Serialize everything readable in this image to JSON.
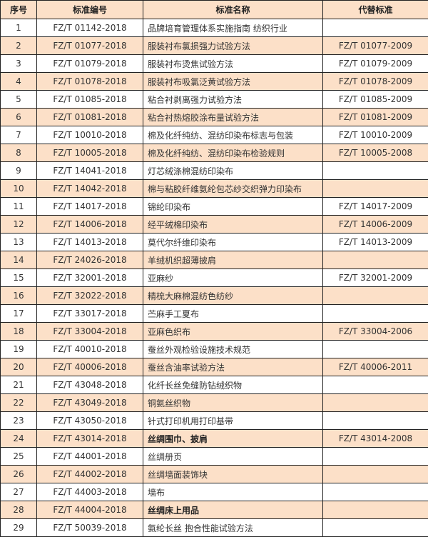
{
  "headers": [
    "序号",
    "标准编号",
    "标准名称",
    "代替标准"
  ],
  "rows": [
    {
      "no": "1",
      "code": "FZ/T 01142-2018",
      "name": "品牌培育管理体系实施指南  纺织行业",
      "replaces": ""
    },
    {
      "no": "2",
      "code": "FZ/T 01077-2018",
      "name": "服装衬布氯损强力试验方法",
      "replaces": "FZ/T 01077-2009"
    },
    {
      "no": "3",
      "code": "FZ/T 01079-2018",
      "name": "服装衬布烫焦试验方法",
      "replaces": "FZ/T 01079-2009"
    },
    {
      "no": "4",
      "code": "FZ/T 01078-2018",
      "name": "服装衬布吸氯泛黄试验方法",
      "replaces": "FZ/T 01078-2009"
    },
    {
      "no": "5",
      "code": "FZ/T 01085-2018",
      "name": "粘合衬剥离强力试验方法",
      "replaces": "FZ/T 01085-2009"
    },
    {
      "no": "6",
      "code": "FZ/T 01081-2018",
      "name": "粘合衬热熔胶涂布量试验方法",
      "replaces": "FZ/T 01081-2009"
    },
    {
      "no": "7",
      "code": "FZ/T 10010-2018",
      "name": "棉及化纤纯纺、混纺印染布标志与包装",
      "replaces": "FZ/T 10010-2009"
    },
    {
      "no": "8",
      "code": "FZ/T 10005-2018",
      "name": "棉及化纤纯纺、混纺印染布检验规则",
      "replaces": "FZ/T 10005-2008"
    },
    {
      "no": "9",
      "code": "FZ/T 14041-2018",
      "name": "灯芯绒涤棉混纺印染布",
      "replaces": ""
    },
    {
      "no": "10",
      "code": "FZ/T 14042-2018",
      "name": "棉与粘胶纤维氨纶包芯纱交织弹力印染布",
      "replaces": ""
    },
    {
      "no": "11",
      "code": "FZ/T 14017-2018",
      "name": "锦纶印染布",
      "replaces": "FZ/T 14017-2009"
    },
    {
      "no": "12",
      "code": "FZ/T 14006-2018",
      "name": "经平绒棉印染布",
      "replaces": "FZ/T 14006-2009"
    },
    {
      "no": "13",
      "code": "FZ/T 14013-2018",
      "name": "莫代尔纤维印染布",
      "replaces": "FZ/T 14013-2009"
    },
    {
      "no": "14",
      "code": "FZ/T 24026-2018",
      "name": "羊绒机织超薄披肩",
      "replaces": ""
    },
    {
      "no": "15",
      "code": "FZ/T 32001-2018",
      "name": "亚麻纱",
      "replaces": "FZ/T 32001-2009"
    },
    {
      "no": "16",
      "code": "FZ/T 32022-2018",
      "name": "精梳大麻棉混纺色纺纱",
      "replaces": ""
    },
    {
      "no": "17",
      "code": "FZ/T 33017-2018",
      "name": "苎麻手工夏布",
      "replaces": ""
    },
    {
      "no": "18",
      "code": "FZ/T 33004-2018",
      "name": "亚麻色织布",
      "replaces": "FZ/T 33004-2006"
    },
    {
      "no": "19",
      "code": "FZ/T 40010-2018",
      "name": "蚕丝外观检验设施技术规范",
      "replaces": ""
    },
    {
      "no": "20",
      "code": "FZ/T 40006-2018",
      "name": "蚕丝含油率试验方法",
      "replaces": "FZ/T 40006-2011"
    },
    {
      "no": "21",
      "code": "FZ/T 43048-2018",
      "name": "化纤长丝免缝防钻绒织物",
      "replaces": ""
    },
    {
      "no": "22",
      "code": "FZ/T 43049-2018",
      "name": "铜氨丝织物",
      "replaces": ""
    },
    {
      "no": "23",
      "code": "FZ/T 43050-2018",
      "name": "针式打印机用打印基带",
      "replaces": ""
    },
    {
      "no": "24",
      "code": "FZ/T 43014-2018",
      "name": "丝绸围巾、披肩",
      "replaces": "FZ/T 43014-2008"
    },
    {
      "no": "25",
      "code": "FZ/T 44001-2018",
      "name": "丝绸册页",
      "replaces": ""
    },
    {
      "no": "26",
      "code": "FZ/T 44002-2018",
      "name": "丝绸墙面装饰块",
      "replaces": ""
    },
    {
      "no": "27",
      "code": "FZ/T 44003-2018",
      "name": "墙布",
      "replaces": ""
    },
    {
      "no": "28",
      "code": "FZ/T 44004-2018",
      "name": "丝绸床上用品",
      "replaces": ""
    },
    {
      "no": "29",
      "code": "FZ/T 50039-2018",
      "name": "氨纶长丝 抱合性能试验方法",
      "replaces": ""
    }
  ],
  "header_color": "#fce0c8"
}
